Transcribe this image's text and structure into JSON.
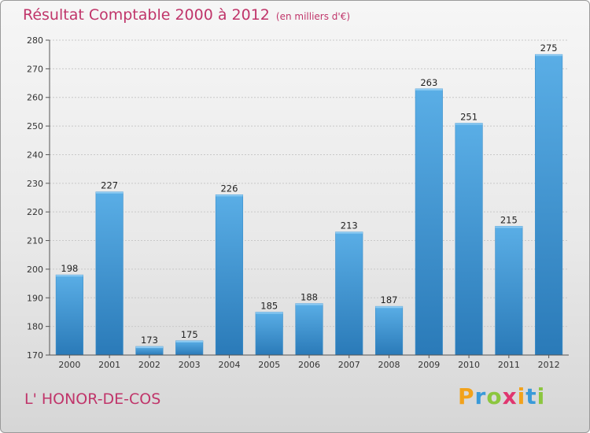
{
  "chart_data": {
    "type": "bar",
    "title": "Résultat Comptable 2000 à 2012",
    "subtitle": "(en milliers d'€)",
    "categories": [
      "2000",
      "2001",
      "2002",
      "2003",
      "2004",
      "2005",
      "2006",
      "2007",
      "2008",
      "2009",
      "2010",
      "2011",
      "2012"
    ],
    "values": [
      198,
      227,
      173,
      175,
      226,
      185,
      188,
      213,
      187,
      263,
      251,
      215,
      275
    ],
    "ylim": [
      170,
      280
    ],
    "yticks": [
      170,
      180,
      190,
      200,
      210,
      220,
      230,
      240,
      250,
      260,
      270,
      280
    ],
    "grid": true,
    "bar_color_top": "#5aaee6",
    "bar_color_bottom": "#2a7ab8"
  },
  "commune": "L' HONOR-DE-COS",
  "brand": {
    "letters": [
      "P",
      "r",
      "o",
      "x",
      "i",
      "t",
      "i"
    ],
    "colors": [
      "#f2a21b",
      "#3a9ad9",
      "#8cc63f",
      "#e0366f",
      "#f2a21b",
      "#3a9ad9",
      "#8cc63f"
    ]
  },
  "colors": {
    "title": "#c0356a"
  }
}
